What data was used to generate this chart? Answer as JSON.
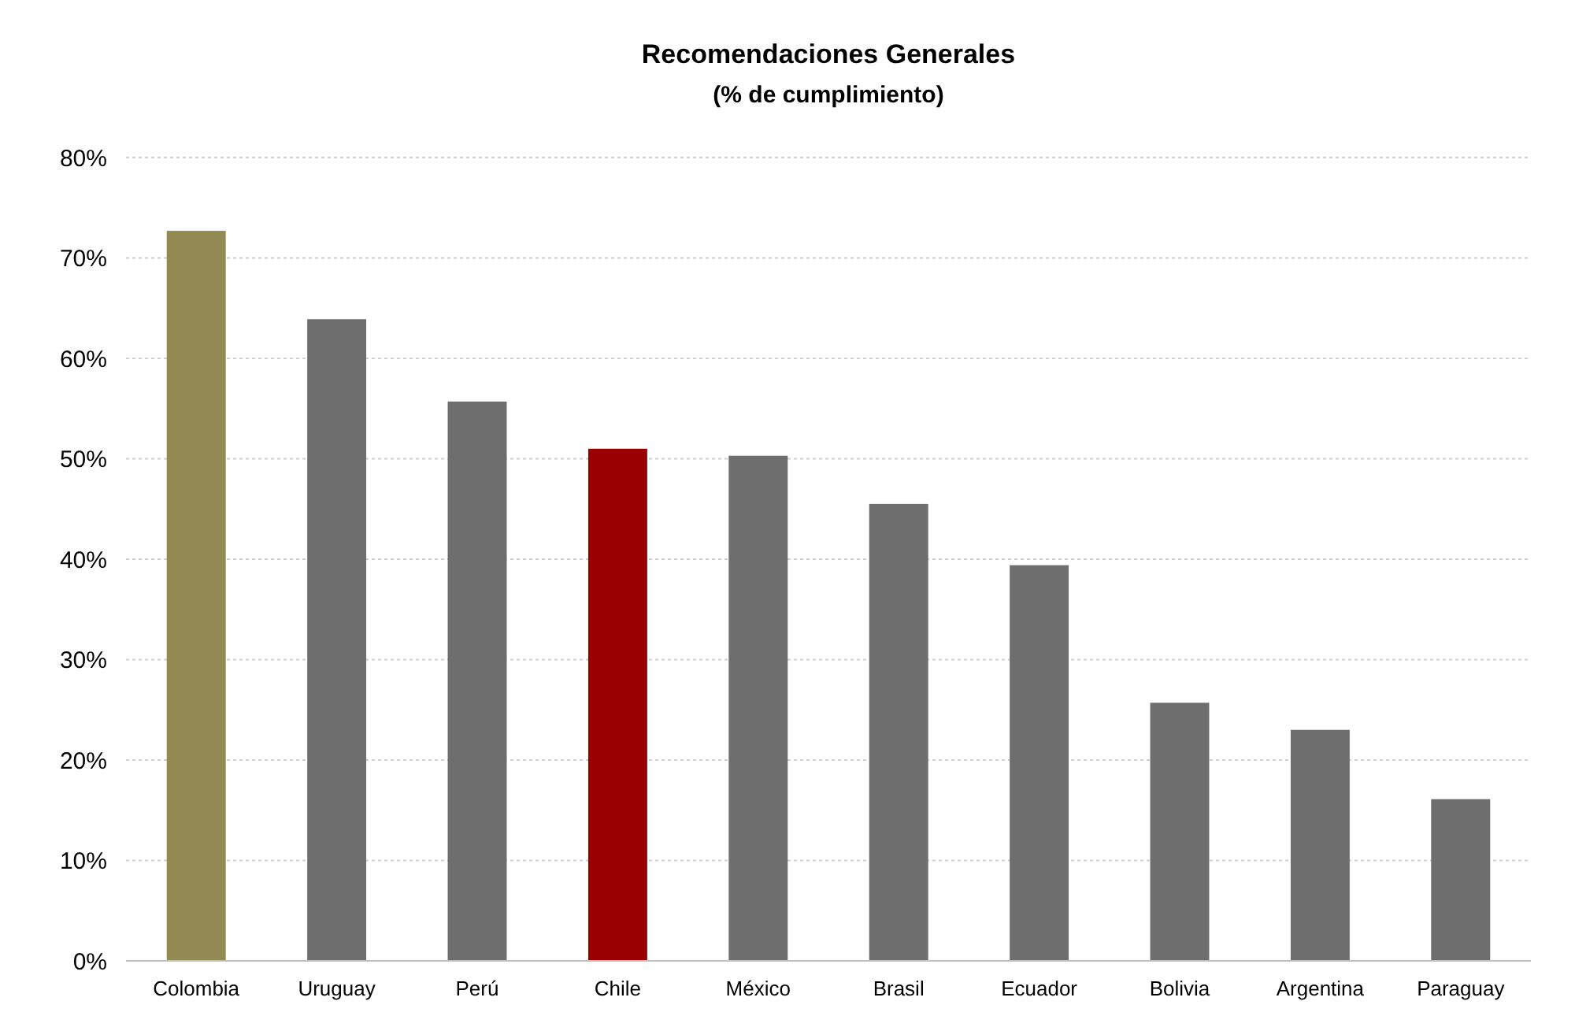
{
  "chart_data": {
    "type": "bar",
    "title": "Recomendaciones Generales",
    "subtitle": "(% de cumplimiento)",
    "categories": [
      "Colombia",
      "Uruguay",
      "Perú",
      "Chile",
      "México",
      "Brasil",
      "Ecuador",
      "Bolivia",
      "Argentina",
      "Paraguay"
    ],
    "values": [
      72.7,
      63.9,
      55.7,
      51.0,
      50.3,
      45.5,
      39.4,
      25.7,
      23.0,
      16.1
    ],
    "colors": [
      "#938953",
      "#6e6e6e",
      "#6e6e6e",
      "#990000",
      "#6e6e6e",
      "#6e6e6e",
      "#6e6e6e",
      "#6e6e6e",
      "#6e6e6e",
      "#6e6e6e"
    ],
    "ylim": [
      0,
      80
    ],
    "yticks": [
      {
        "value": 0,
        "label": "0%"
      },
      {
        "value": 10,
        "label": "10%"
      },
      {
        "value": 20,
        "label": "20%"
      },
      {
        "value": 30,
        "label": "30%"
      },
      {
        "value": 40,
        "label": "40%"
      },
      {
        "value": 50,
        "label": "50%"
      },
      {
        "value": 60,
        "label": "60%"
      },
      {
        "value": 70,
        "label": "70%"
      },
      {
        "value": 80,
        "label": "80%"
      }
    ],
    "grid": "y"
  }
}
